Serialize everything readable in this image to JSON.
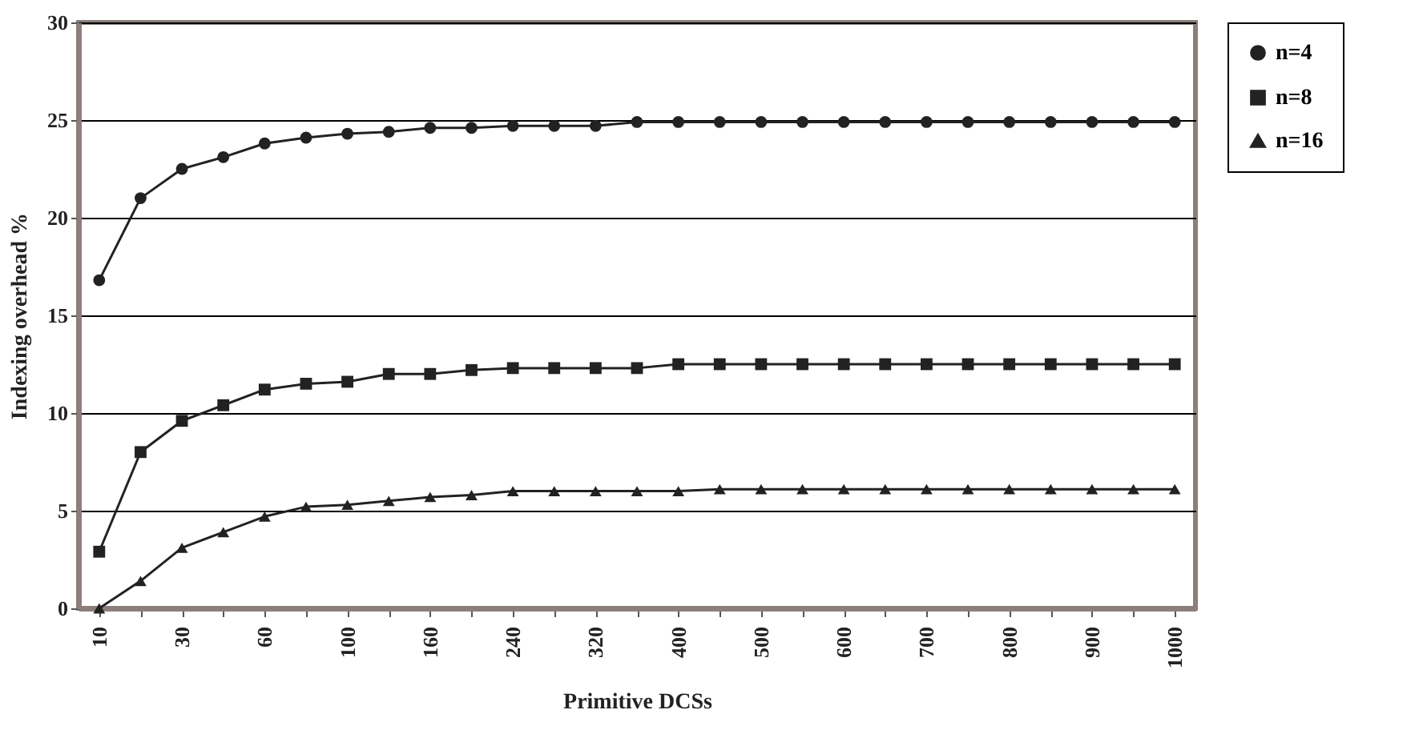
{
  "chart_data": {
    "type": "line",
    "xlabel": "Primitive  DCSs",
    "ylabel": "Indexing overhead %",
    "categories": [
      "10",
      null,
      "30",
      null,
      "60",
      null,
      "100",
      null,
      "160",
      null,
      "240",
      null,
      "320",
      null,
      "400",
      null,
      "500",
      null,
      "600",
      null,
      "700",
      null,
      "800",
      null,
      "900",
      null,
      "1000"
    ],
    "series": [
      {
        "name": "n=4",
        "color": "#222222",
        "marker": "circle",
        "values": [
          16.8,
          21.0,
          22.5,
          23.1,
          23.8,
          24.1,
          24.3,
          24.4,
          24.6,
          24.6,
          24.7,
          24.7,
          24.7,
          24.9,
          24.9,
          24.9,
          24.9,
          24.9,
          24.9,
          24.9,
          24.9,
          24.9,
          24.9,
          24.9,
          24.9,
          24.9,
          24.9
        ]
      },
      {
        "name": "n=8",
        "color": "#222222",
        "marker": "square",
        "values": [
          2.9,
          8.0,
          9.6,
          10.4,
          11.2,
          11.5,
          11.6,
          12.0,
          12.0,
          12.2,
          12.3,
          12.3,
          12.3,
          12.3,
          12.5,
          12.5,
          12.5,
          12.5,
          12.5,
          12.5,
          12.5,
          12.5,
          12.5,
          12.5,
          12.5,
          12.5,
          12.5
        ]
      },
      {
        "name": "n=16",
        "color": "#222222",
        "marker": "triangle",
        "values": [
          0,
          1.4,
          3.1,
          3.9,
          4.7,
          5.2,
          5.3,
          5.5,
          5.7,
          5.8,
          6.0,
          6.0,
          6.0,
          6.0,
          6.0,
          6.1,
          6.1,
          6.1,
          6.1,
          6.1,
          6.1,
          6.1,
          6.1,
          6.1,
          6.1,
          6.1,
          6.1
        ]
      }
    ],
    "ylim": [
      0,
      30
    ],
    "yticks": [
      0,
      5,
      10,
      15,
      20,
      25,
      30
    ],
    "grid": "y",
    "legend": "right",
    "line_style": "solid"
  }
}
